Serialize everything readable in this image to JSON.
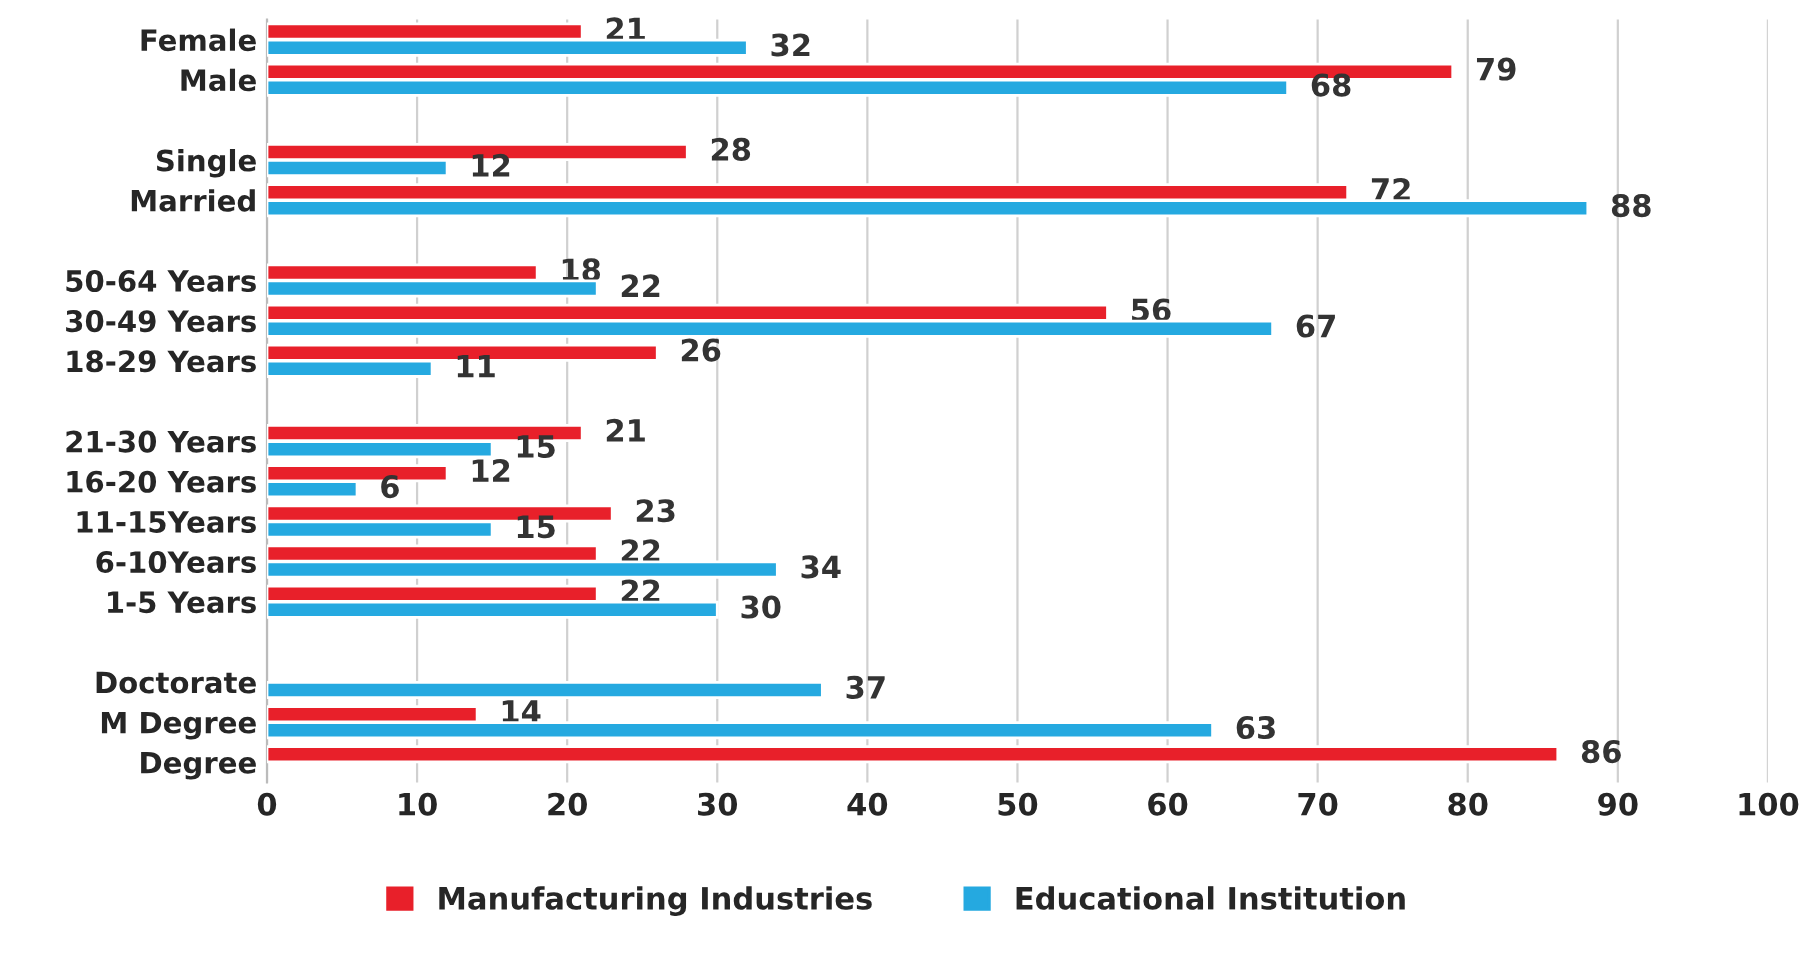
{
  "chart_data": {
    "type": "bar",
    "orientation": "horizontal",
    "categories": [
      "Female",
      "Male",
      null,
      "Single",
      "Married",
      null,
      "50-64 Years",
      "30-49 Years",
      "18-29 Years",
      null,
      "21-30 Years",
      "16-20 Years",
      "11-15Years",
      "6-10Years",
      "1-5 Years",
      null,
      "Doctorate",
      "M Degree",
      "Degree"
    ],
    "series": [
      {
        "name": "Manufacturing Industries",
        "color": "#e8202a",
        "values": [
          21,
          79,
          null,
          28,
          72,
          null,
          18,
          56,
          26,
          null,
          21,
          12,
          23,
          22,
          22,
          null,
          null,
          14,
          86
        ]
      },
      {
        "name": "Educational Institution",
        "color": "#25a9e0",
        "values": [
          32,
          68,
          null,
          12,
          88,
          null,
          22,
          67,
          11,
          null,
          15,
          6,
          15,
          34,
          30,
          null,
          37,
          63,
          null
        ]
      }
    ],
    "xlim": [
      0,
      100
    ],
    "xticks": [
      0,
      10,
      20,
      30,
      40,
      50,
      60,
      70,
      80,
      90,
      100
    ],
    "grid": "x",
    "legend": "bottom",
    "data_labels": true
  }
}
